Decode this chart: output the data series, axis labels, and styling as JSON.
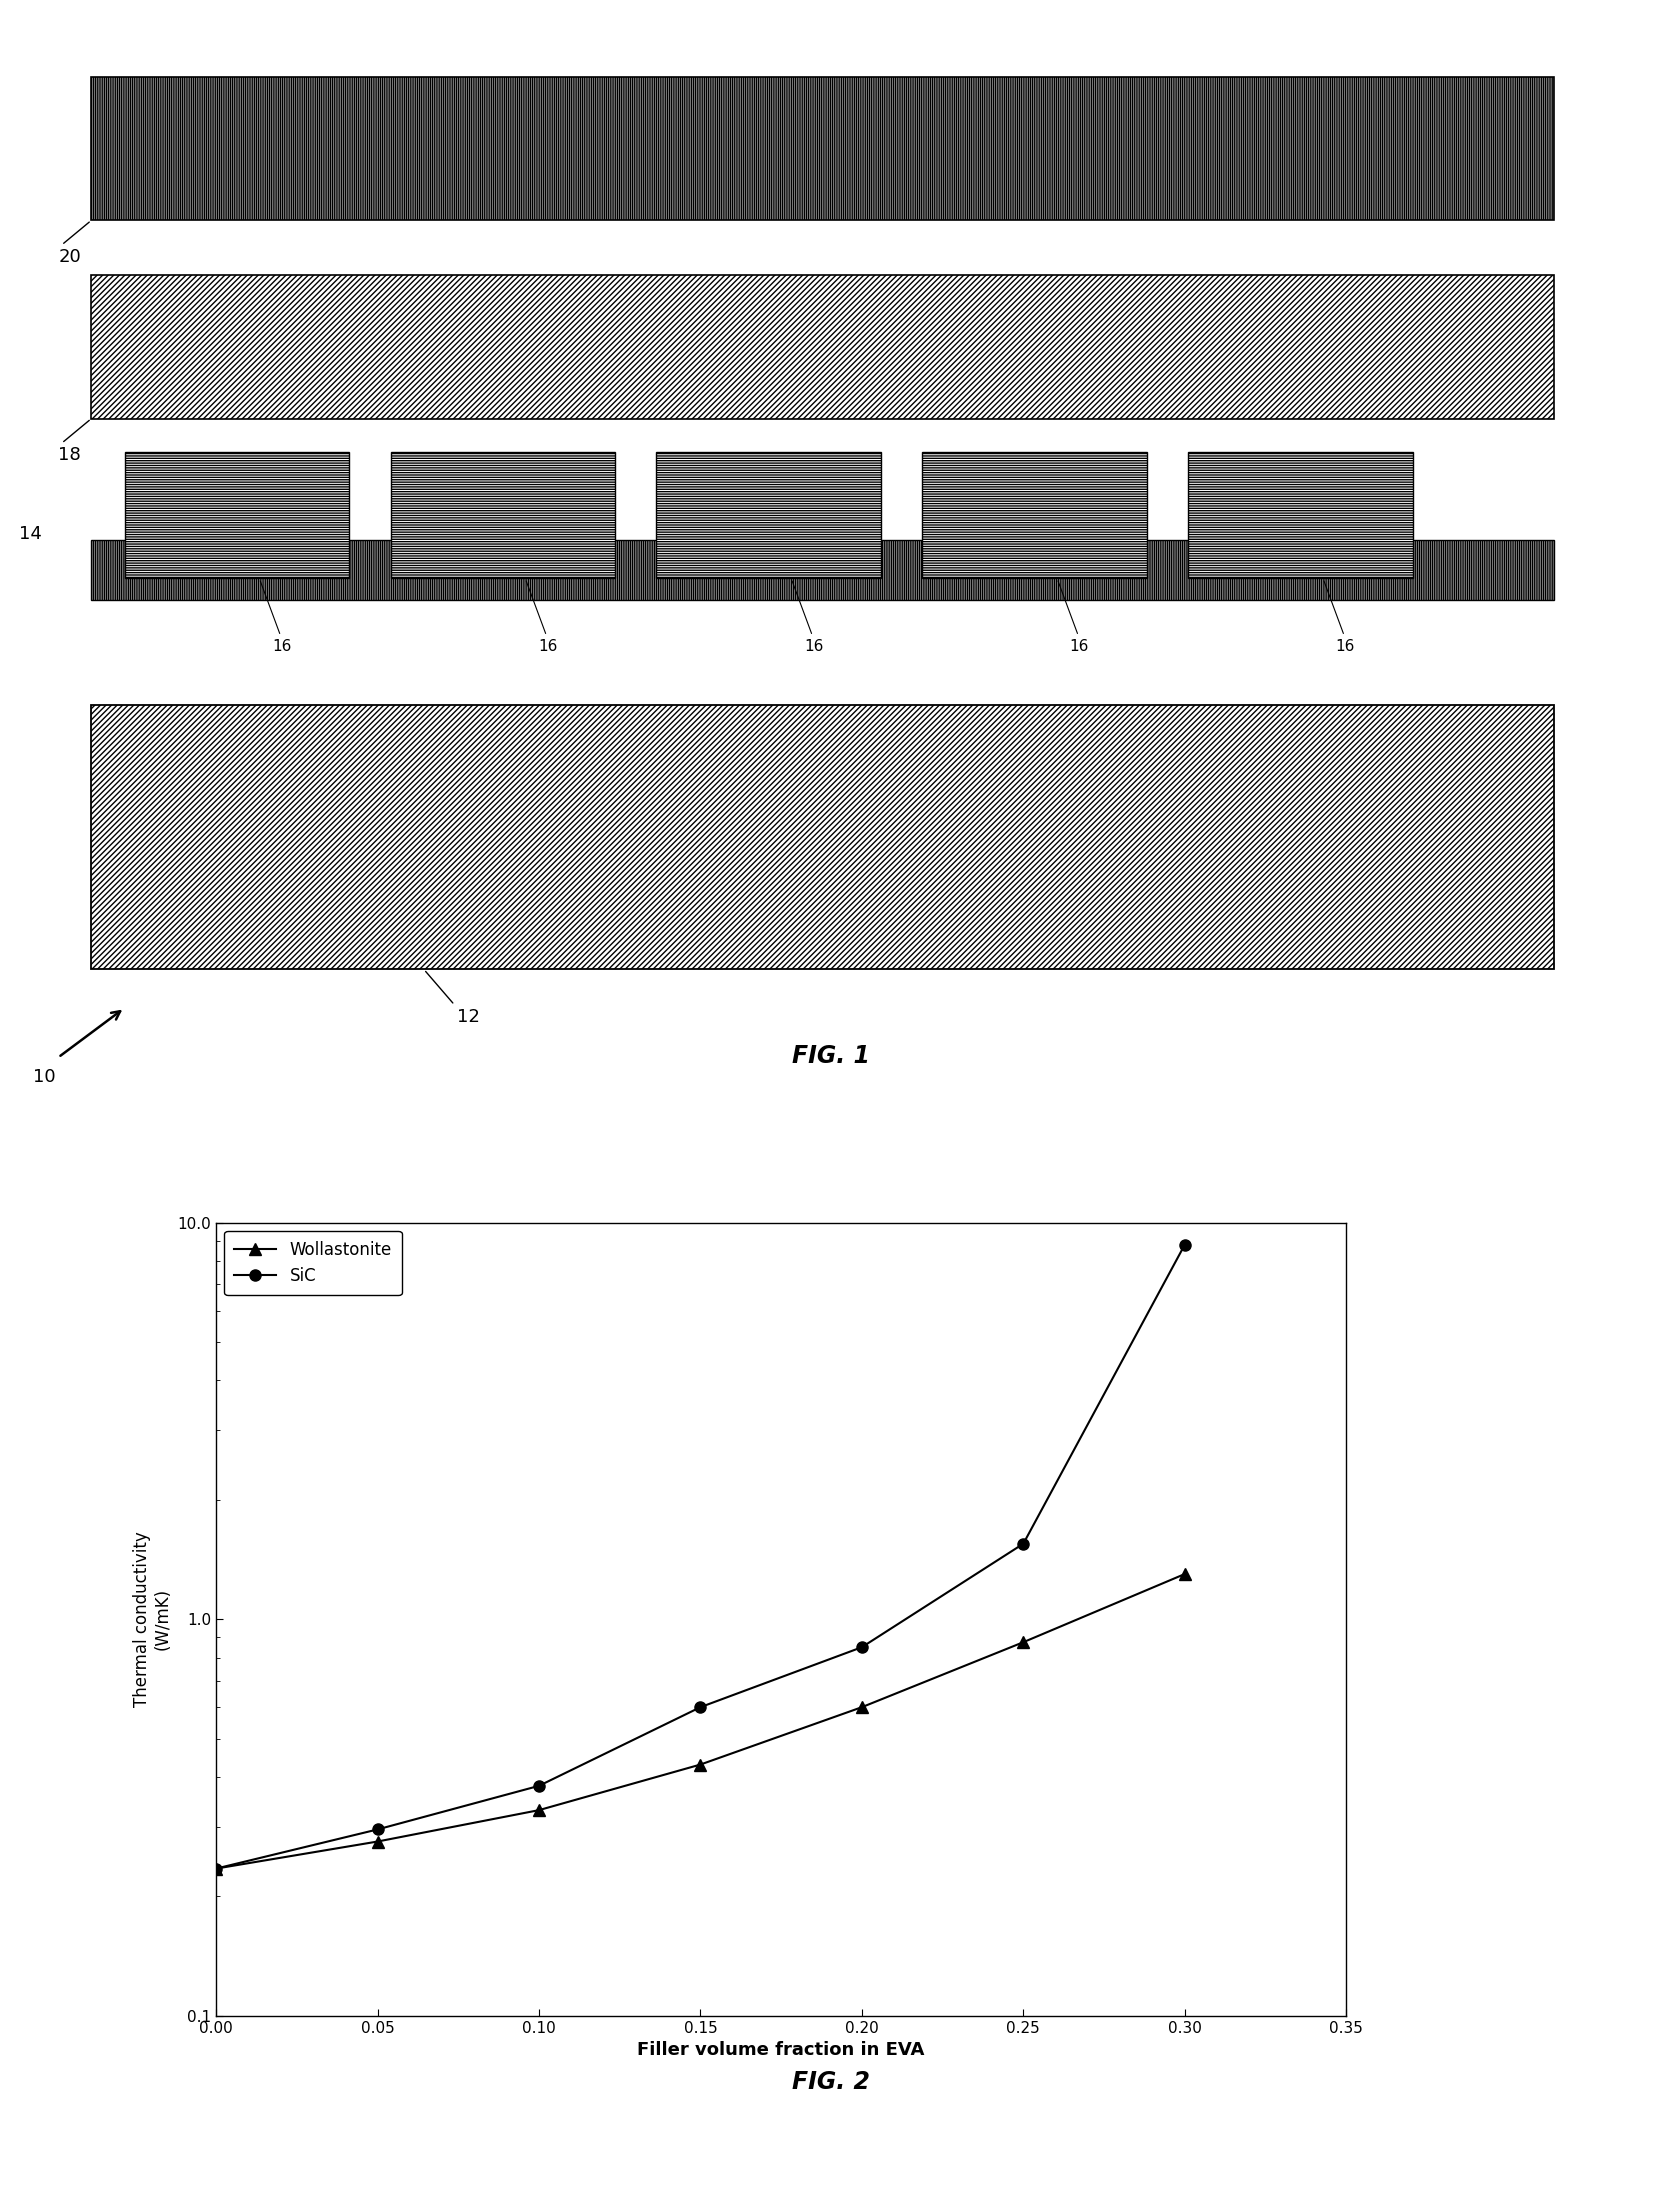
{
  "fig1_label": "FIG. 1",
  "fig2_label": "FIG. 2",
  "wollastonite_x": [
    0.0,
    0.05,
    0.1,
    0.15,
    0.2,
    0.25,
    0.3
  ],
  "wollastonite_y": [
    0.235,
    0.275,
    0.33,
    0.43,
    0.6,
    0.875,
    1.3
  ],
  "sic_x": [
    0.0,
    0.05,
    0.1,
    0.15,
    0.2,
    0.25,
    0.3
  ],
  "sic_y": [
    0.235,
    0.295,
    0.38,
    0.6,
    0.85,
    1.55,
    8.8
  ],
  "xlabel": "Filler volume fraction in EVA",
  "ylabel": "Thermal conductivity\n(W/mK)",
  "ylim_log": [
    0.1,
    10.0
  ],
  "xlim": [
    0.0,
    0.35
  ],
  "yticks": [
    0.1,
    1.0,
    10.0
  ],
  "ytick_labels": [
    "0.1",
    "1.0",
    "10.0"
  ],
  "xticks": [
    0.0,
    0.05,
    0.1,
    0.15,
    0.2,
    0.25,
    0.3,
    0.35
  ],
  "legend_wollastonite": "Wollastonite",
  "legend_sic": "SiC",
  "background": "#ffffff"
}
